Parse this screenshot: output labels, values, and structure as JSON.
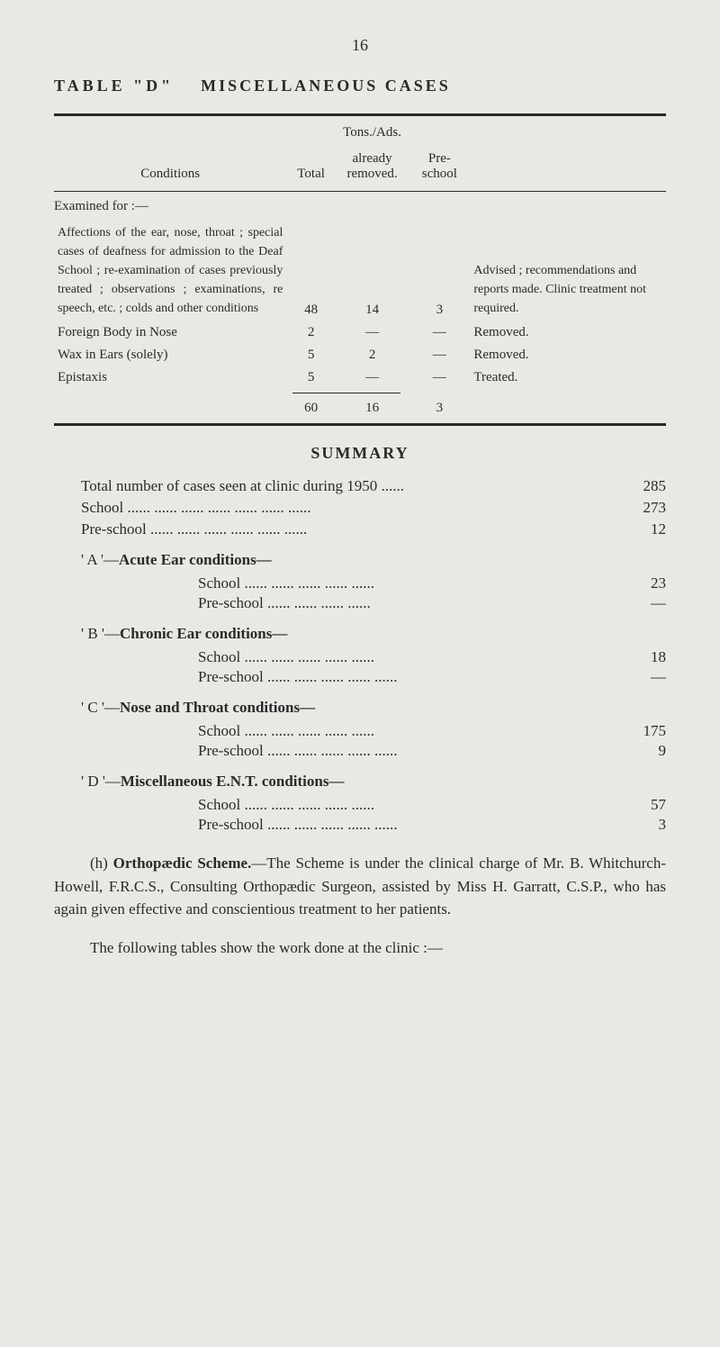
{
  "page_number": "16",
  "title_prefix": "TABLE \"D\"",
  "title_rest": "MISCELLANEOUS CASES",
  "headers": {
    "conditions": "Conditions",
    "total": "Total",
    "tons_ads": "Tons./Ads.",
    "already_removed": "already removed.",
    "preschool": "Pre-school"
  },
  "examined_for": "Examined for :—",
  "rows": [
    {
      "condition": "Affections of the ear, nose, throat ; special cases of deafness for admission to the Deaf School ; re-examination of cases previously treated ; observations ; examinations, re speech, etc. ; colds and other conditions",
      "total": "48",
      "tons": "14",
      "pre": "3",
      "remark": "Advised ; recommendations and reports made. Clinic treatment not required."
    },
    {
      "condition": "Foreign Body in Nose",
      "total": "2",
      "tons": "—",
      "pre": "—",
      "remark": "Removed."
    },
    {
      "condition": "Wax in Ears (solely)",
      "total": "5",
      "tons": "2",
      "pre": "—",
      "remark": "Removed."
    },
    {
      "condition": "Epistaxis",
      "total": "5",
      "tons": "—",
      "pre": "—",
      "remark": "Treated."
    }
  ],
  "totals": {
    "total": "60",
    "tons": "16",
    "pre": "3"
  },
  "summary_title": "SUMMARY",
  "summary_lines": [
    {
      "label": "Total number of cases seen at clinic during 1950 ......",
      "value": "285"
    },
    {
      "label": "School ...... ...... ...... ...... ...... ...... ......",
      "value": "273"
    },
    {
      "label": "Pre-school ...... ...... ...... ...... ...... ......",
      "value": "12"
    }
  ],
  "categories": [
    {
      "header_prefix": "' A '—",
      "header_bold": "Acute Ear conditions—",
      "sub": [
        {
          "label": "School ...... ...... ...... ...... ......",
          "value": "23"
        },
        {
          "label": "Pre-school ...... ...... ...... ......",
          "value": "—"
        }
      ]
    },
    {
      "header_prefix": "' B '—",
      "header_bold": "Chronic Ear conditions—",
      "sub": [
        {
          "label": "School ...... ...... ...... ...... ......",
          "value": "18"
        },
        {
          "label": "Pre-school ...... ...... ...... ...... ......",
          "value": "—"
        }
      ]
    },
    {
      "header_prefix": "' C '—",
      "header_bold": "Nose and Throat conditions—",
      "sub": [
        {
          "label": "School ...... ...... ...... ...... ......",
          "value": "175"
        },
        {
          "label": "Pre-school ...... ...... ...... ...... ......",
          "value": "9"
        }
      ]
    },
    {
      "header_prefix": "' D '—",
      "header_bold": "Miscellaneous E.N.T. conditions—",
      "sub": [
        {
          "label": "School ...... ...... ...... ...... ......",
          "value": "57"
        },
        {
          "label": "Pre-school ...... ...... ...... ...... ......",
          "value": "3"
        }
      ]
    }
  ],
  "paragraph_h": "(h) ",
  "paragraph_bold": "Orthopædic Scheme.",
  "paragraph_rest": "—The Scheme is under the clinical charge of Mr. B. Whitchurch-Howell, F.R.C.S., Consulting Orthopædic Surgeon, assisted by Miss H. Garratt, C.S.P., who has again given effective and conscientious treatment to her patients.",
  "closing": "The following tables show the work done at the clinic :—"
}
